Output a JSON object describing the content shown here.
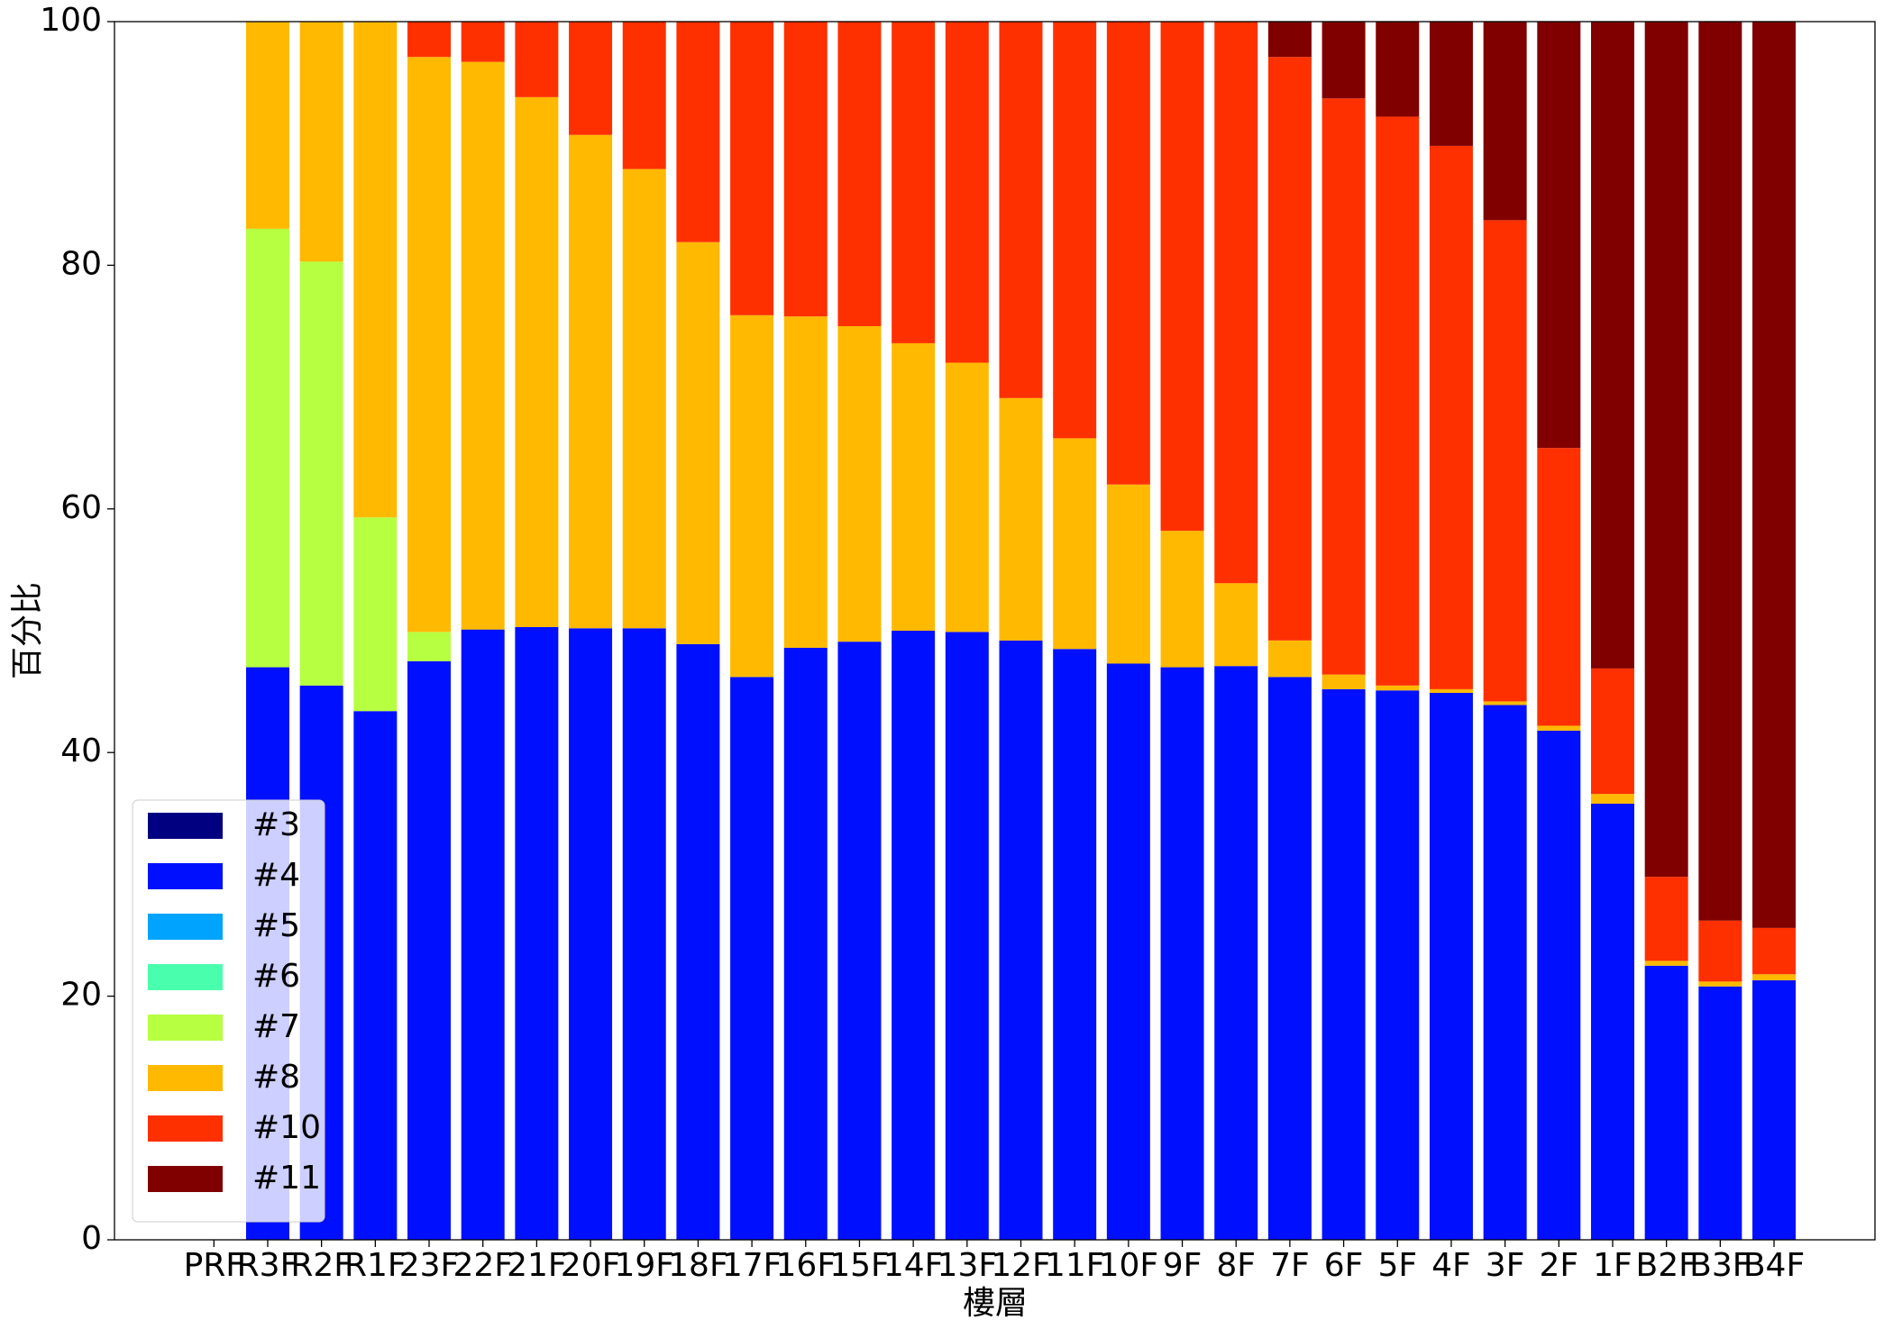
{
  "chart_data": {
    "type": "stacked_bar",
    "xlabel": "樓層",
    "ylabel": "百分比",
    "categories": [
      "PRF",
      "R3F",
      "R2F",
      "R1F",
      "23F",
      "22F",
      "21F",
      "20F",
      "19F",
      "18F",
      "17F",
      "16F",
      "15F",
      "14F",
      "13F",
      "12F",
      "11F",
      "10F",
      "9F",
      "8F",
      "7F",
      "6F",
      "5F",
      "4F",
      "3F",
      "2F",
      "1F",
      "B2F",
      "B3F",
      "B4F"
    ],
    "series": [
      {
        "name": "#3",
        "color": "#000080",
        "values": [
          0,
          0,
          0,
          0,
          0,
          0,
          0,
          0,
          0,
          0,
          0,
          0,
          0,
          0,
          0,
          0,
          0,
          0,
          0,
          0,
          0,
          0,
          0,
          0,
          0,
          0,
          0,
          0,
          0,
          0
        ]
      },
      {
        "name": "#4",
        "color": "#0010ff",
        "values": [
          0,
          47,
          45.5,
          43.4,
          47.5,
          50.1,
          50.3,
          50.2,
          50.2,
          48.9,
          46.2,
          48.6,
          49.1,
          50,
          49.9,
          49.2,
          48.5,
          47.3,
          47,
          47.1,
          46.2,
          45.2,
          45.1,
          44.9,
          43.9,
          41.8,
          35.8,
          22.5,
          20.8,
          21.3
        ]
      },
      {
        "name": "#5",
        "color": "#00a4ff",
        "values": [
          0,
          0,
          0,
          0,
          0,
          0,
          0,
          0,
          0,
          0,
          0,
          0,
          0,
          0,
          0,
          0,
          0,
          0,
          0,
          0,
          0,
          0,
          0,
          0,
          0,
          0,
          0,
          0,
          0,
          0
        ]
      },
      {
        "name": "#6",
        "color": "#49ffad",
        "values": [
          0,
          0,
          0,
          0,
          0,
          0,
          0,
          0,
          0,
          0,
          0,
          0,
          0,
          0,
          0,
          0,
          0,
          0,
          0,
          0,
          0,
          0,
          0,
          0,
          0,
          0,
          0,
          0,
          0,
          0
        ]
      },
      {
        "name": "#7",
        "color": "#b6ff41",
        "values": [
          0,
          36,
          34.8,
          15.9,
          2.4,
          0,
          0,
          0,
          0,
          0,
          0,
          0,
          0,
          0,
          0,
          0,
          0,
          0,
          0,
          0,
          0,
          0,
          0,
          0,
          0,
          0,
          0,
          0,
          0,
          0
        ]
      },
      {
        "name": "#8",
        "color": "#ffb900",
        "values": [
          0,
          17,
          19.7,
          40.7,
          47.2,
          46.6,
          43.5,
          40.5,
          37.7,
          33,
          29.7,
          27.2,
          25.9,
          23.6,
          22.1,
          19.9,
          17.3,
          14.7,
          11.2,
          6.8,
          3,
          1.2,
          0.4,
          0.3,
          0.3,
          0.4,
          0.8,
          0.4,
          0.4,
          0.5
        ]
      },
      {
        "name": "#10",
        "color": "#ff3000",
        "values": [
          0,
          0,
          0,
          0,
          2.9,
          3.3,
          6.2,
          9.3,
          12.1,
          18.1,
          24.1,
          24.2,
          25,
          26.4,
          28,
          30.9,
          34.2,
          38,
          41.8,
          46.1,
          47.9,
          47.3,
          46.7,
          44.6,
          39.5,
          22.8,
          10.3,
          6.9,
          5,
          3.8
        ]
      },
      {
        "name": "#11",
        "color": "#800000",
        "values": [
          0,
          0,
          0,
          0,
          0,
          0,
          0,
          0,
          0,
          0,
          0,
          0,
          0,
          0,
          0,
          0,
          0,
          0,
          0,
          0,
          2.9,
          6.3,
          7.8,
          10.2,
          16.3,
          35,
          53.1,
          70.2,
          73.8,
          74.4
        ]
      }
    ],
    "ylim": [
      0,
      100
    ],
    "yticks": [
      0,
      20,
      40,
      60,
      80,
      100
    ],
    "legend": "lower left"
  }
}
